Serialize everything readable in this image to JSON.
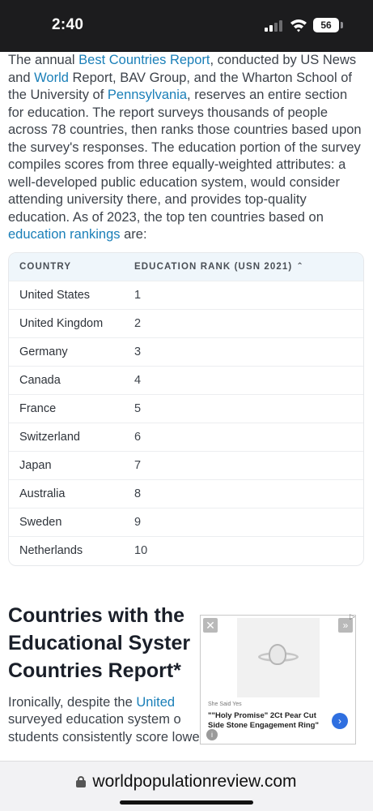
{
  "status_bar": {
    "time": "2:40",
    "battery": "56"
  },
  "intro": {
    "t1": "The annual ",
    "link_best_countries": "Best Countries Report",
    "t2": ", conducted by US News and ",
    "link_world": "World",
    "t3": " Report, BAV Group, and the Wharton School of the University of ",
    "link_pennsylvania": "Pennsylvania",
    "t4": ", reserves an entire section for education. The report surveys thousands of people across 78 countries, then ranks those countries based upon the survey's responses. The education portion of the survey compiles scores from three equally-weighted attributes: a well-developed public education system, would consider attending university there, and provides top-quality education. As of 2023, the top ten countries based on ",
    "link_education_rankings": "education rankings",
    "t5": " are:"
  },
  "table": {
    "headers": {
      "country": "COUNTRY",
      "rank": "EDUCATION RANK (USN 2021)"
    },
    "sort_icon": "chevron-up-icon",
    "rows": [
      {
        "country": "United States",
        "rank": "1"
      },
      {
        "country": "United Kingdom",
        "rank": "2"
      },
      {
        "country": "Germany",
        "rank": "3"
      },
      {
        "country": "Canada",
        "rank": "4"
      },
      {
        "country": "France",
        "rank": "5"
      },
      {
        "country": "Switzerland",
        "rank": "6"
      },
      {
        "country": "Japan",
        "rank": "7"
      },
      {
        "country": "Australia",
        "rank": "8"
      },
      {
        "country": "Sweden",
        "rank": "9"
      },
      {
        "country": "Netherlands",
        "rank": "10"
      }
    ]
  },
  "section": {
    "heading_line1": "Countries with the",
    "heading_line2": "Educational Syster",
    "heading_line3": "Countries Report*",
    "p1": "Ironically, despite the ",
    "link_united": "United",
    "p2": " surveyed education system o",
    "p3": " students consistently score lower in math and science"
  },
  "ad": {
    "brand": "She Said Yes",
    "title": "\"\"Holy Promise\" 2Ct Pear Cut Side Stone Engagement Ring\"",
    "close_symbol": "✕",
    "skip_symbol": "»",
    "choices_symbol": "▷",
    "cta_symbol": "›",
    "info_symbol": "i"
  },
  "browser": {
    "url": "worldpopulationreview.com"
  }
}
